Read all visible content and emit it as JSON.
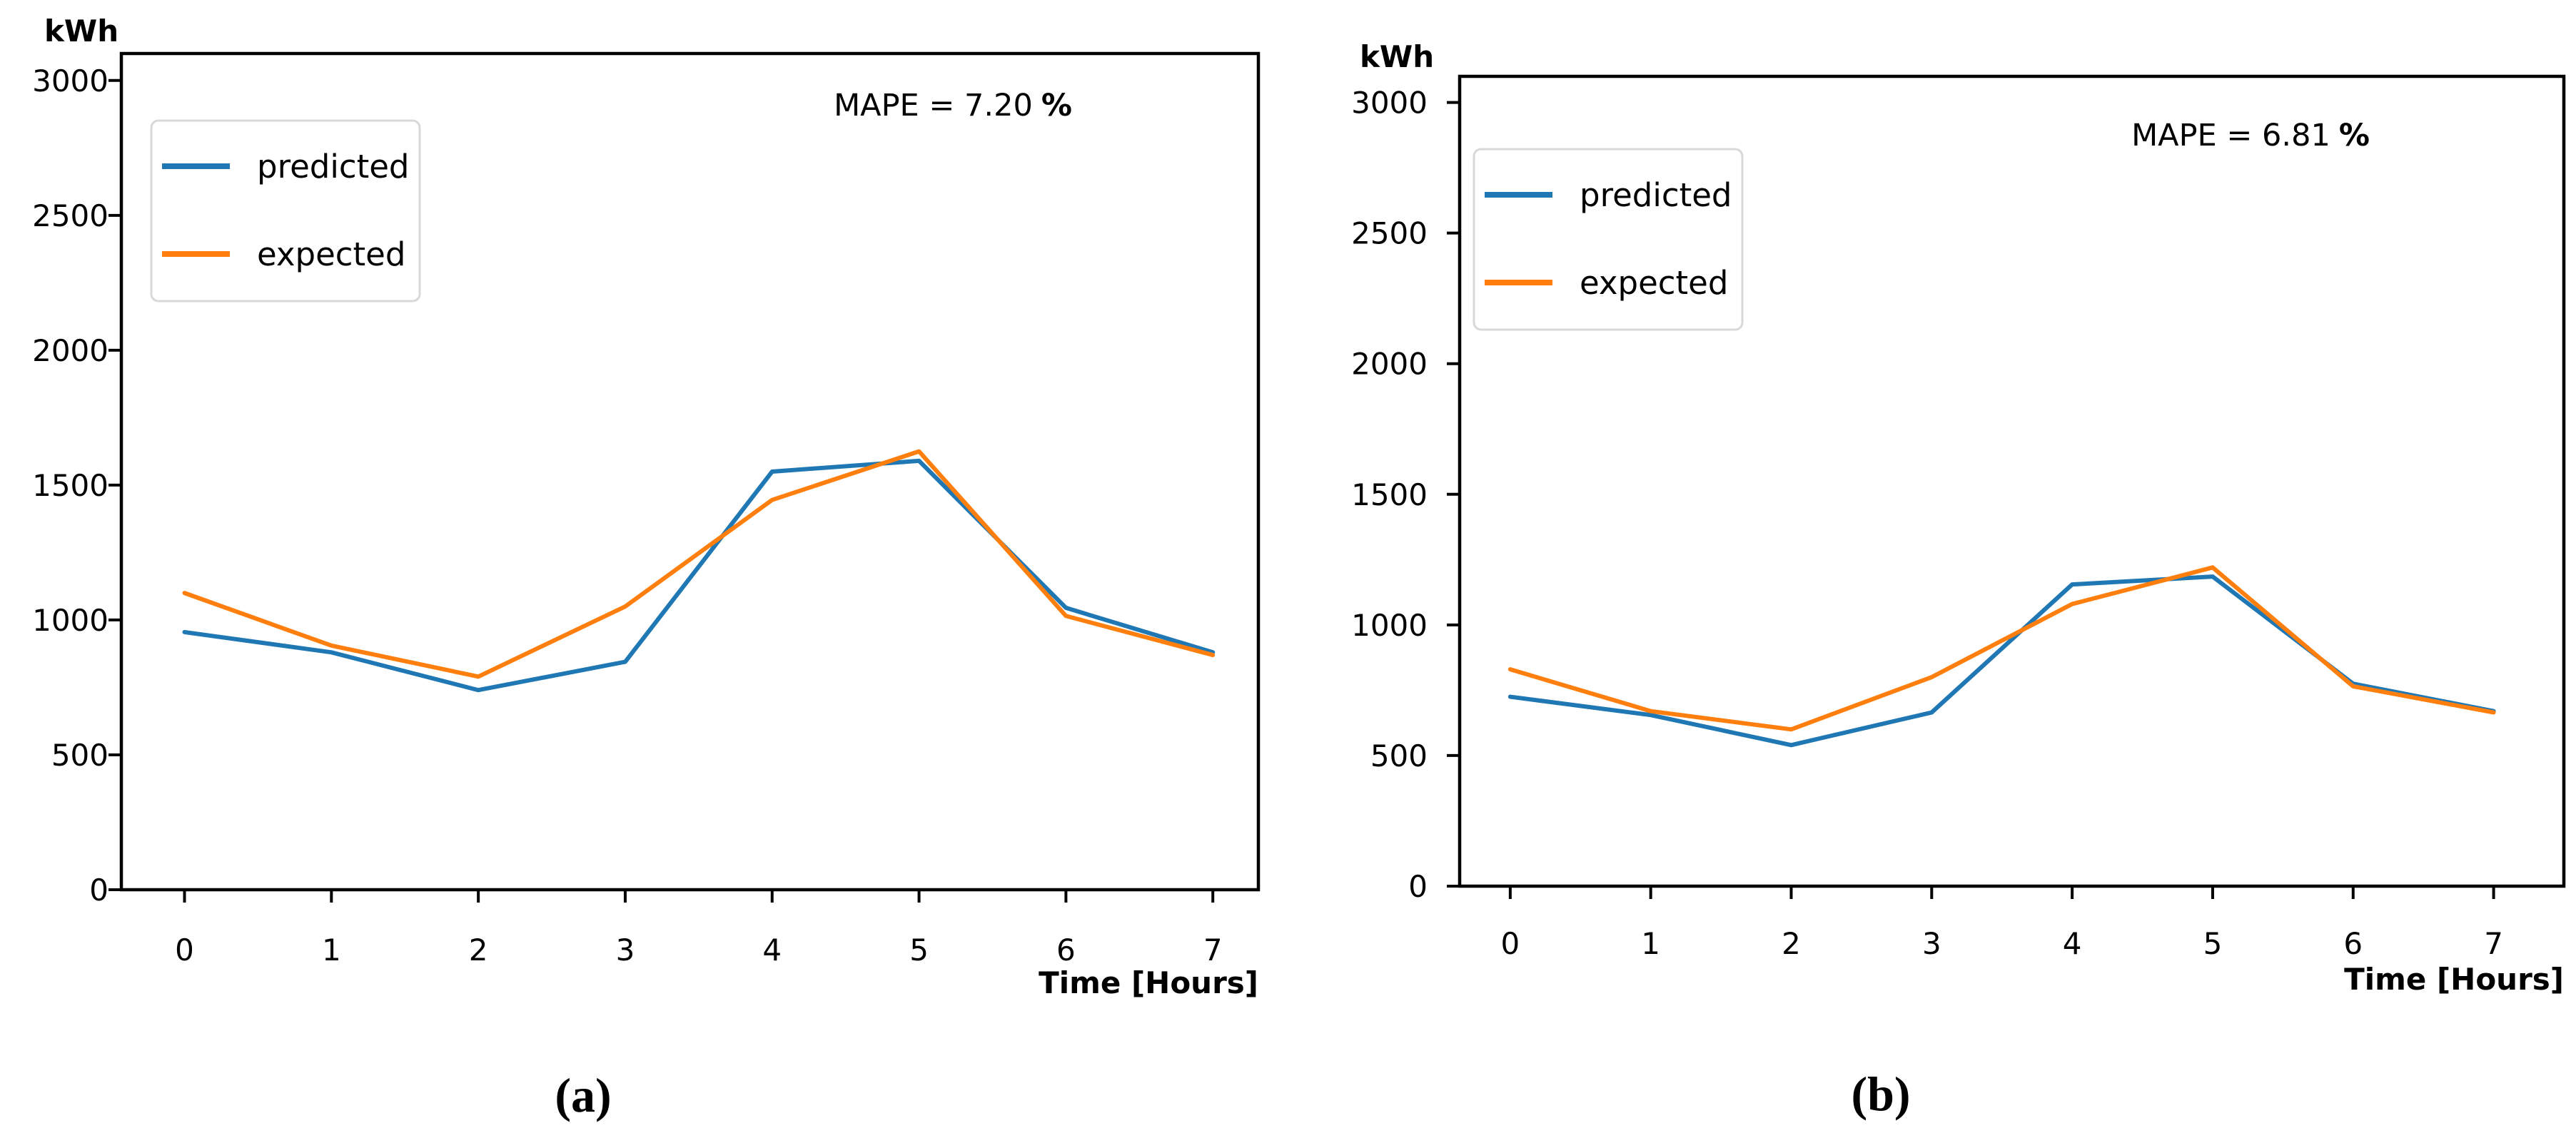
{
  "figure": {
    "background": "#ffffff",
    "captions": {
      "a": "(a)",
      "b": "(b)"
    }
  },
  "chart_data": [
    {
      "id": "a",
      "type": "line",
      "caption": "(a)",
      "ylabel": "kWh",
      "xlabel": "Time [Hours]",
      "annotation": {
        "mape_text": "MAPE = 7.20",
        "mape_unit": "%"
      },
      "x": [
        0,
        1,
        2,
        3,
        4,
        5,
        6,
        7
      ],
      "xticks": [
        "0",
        "1",
        "2",
        "3",
        "4",
        "5",
        "6",
        "7"
      ],
      "yticks": [
        "0",
        "500",
        "1000",
        "1500",
        "2000",
        "2500",
        "3000"
      ],
      "xlim": [
        -0.43,
        7.31
      ],
      "ylim": [
        0,
        3100
      ],
      "grid": false,
      "legend_position": "upper-left",
      "series": [
        {
          "name": "predicted",
          "color": "#1f77b4",
          "values": [
            955,
            880,
            740,
            845,
            1550,
            1590,
            1045,
            880
          ]
        },
        {
          "name": "expected",
          "color": "#ff7f0e",
          "values": [
            1100,
            905,
            790,
            1050,
            1445,
            1625,
            1015,
            870
          ]
        }
      ]
    },
    {
      "id": "b",
      "type": "line",
      "caption": "(b)",
      "ylabel": "kWh",
      "xlabel": "Time [Hours]",
      "annotation": {
        "mape_text": "MAPE = 6.81",
        "mape_unit": "%"
      },
      "x": [
        0,
        1,
        2,
        3,
        4,
        5,
        6,
        7
      ],
      "xticks": [
        "0",
        "1",
        "2",
        "3",
        "4",
        "5",
        "6",
        "7"
      ],
      "yticks": [
        "0",
        "500",
        "1000",
        "1500",
        "2000",
        "2500",
        "3000"
      ],
      "xlim": [
        -0.36,
        7.5
      ],
      "ylim": [
        0,
        3100
      ],
      "grid": false,
      "legend_position": "upper-left",
      "series": [
        {
          "name": "predicted",
          "color": "#1f77b4",
          "values": [
            725,
            655,
            540,
            665,
            1155,
            1185,
            775,
            670
          ]
        },
        {
          "name": "expected",
          "color": "#ff7f0e",
          "values": [
            830,
            670,
            600,
            800,
            1080,
            1220,
            765,
            665
          ]
        }
      ]
    }
  ]
}
